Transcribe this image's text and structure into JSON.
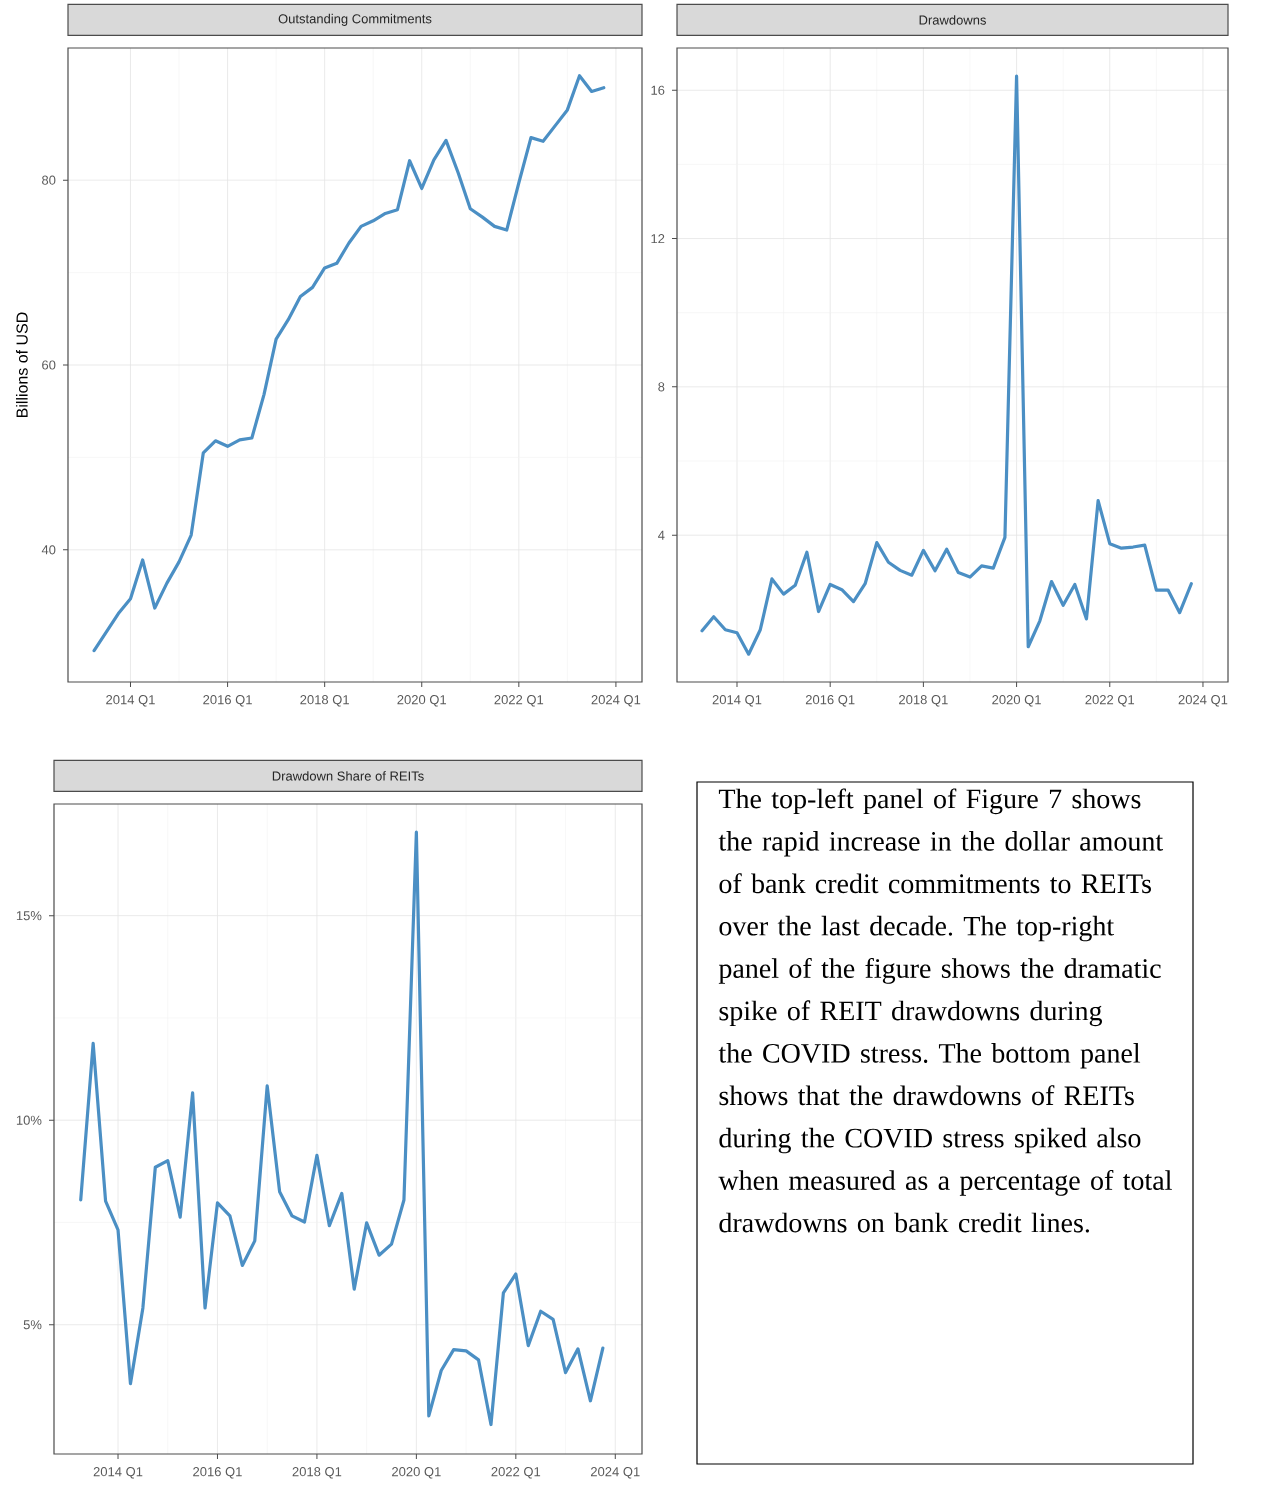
{
  "chart_data": [
    {
      "type": "line",
      "title": "Outstanding Commitments",
      "ylabel": "Billions of USD",
      "color": "#4b8fc4",
      "grid": true,
      "categories": [
        null,
        null,
        null,
        "2014 Q1",
        null,
        null,
        null,
        null,
        null,
        null,
        null,
        "2016 Q1",
        null,
        null,
        null,
        null,
        null,
        null,
        null,
        "2018 Q1",
        null,
        null,
        null,
        null,
        null,
        null,
        null,
        "2020 Q1",
        null,
        null,
        null,
        null,
        null,
        null,
        null,
        "2022 Q1",
        null,
        null,
        null,
        null,
        null,
        null,
        null,
        "2024 Q1"
      ],
      "values": [
        29.1,
        31.1,
        33.1,
        34.7,
        38.9,
        33.7,
        36.4,
        38.7,
        41.6,
        50.5,
        51.8,
        51.2,
        51.9,
        52.1,
        56.8,
        62.8,
        64.9,
        67.4,
        68.4,
        70.5,
        71.0,
        73.2,
        75.0,
        75.6,
        76.4,
        76.8,
        82.1,
        79.1,
        82.2,
        84.3,
        80.8,
        76.9,
        76.0,
        75.0,
        74.6,
        79.7,
        84.6,
        84.2,
        85.9,
        87.6,
        91.3,
        89.6,
        90.0,
        null
      ],
      "ylim": [
        25.7,
        94.3
      ],
      "yticks": [
        40,
        60,
        80
      ]
    },
    {
      "type": "line",
      "title": "Drawdowns",
      "color": "#4b8fc4",
      "grid": true,
      "categories": [
        null,
        null,
        null,
        "2014 Q1",
        null,
        null,
        null,
        null,
        null,
        null,
        null,
        "2016 Q1",
        null,
        null,
        null,
        null,
        null,
        null,
        null,
        "2018 Q1",
        null,
        null,
        null,
        null,
        null,
        null,
        null,
        "2020 Q1",
        null,
        null,
        null,
        null,
        null,
        null,
        null,
        "2022 Q1",
        null,
        null,
        null,
        null,
        null,
        null,
        null,
        "2024 Q1"
      ],
      "values": [
        1.42,
        1.8,
        1.45,
        1.37,
        0.79,
        1.45,
        2.82,
        2.41,
        2.65,
        3.54,
        1.94,
        2.67,
        2.53,
        2.21,
        2.69,
        3.8,
        3.27,
        3.05,
        2.92,
        3.59,
        3.04,
        3.62,
        2.99,
        2.87,
        3.17,
        3.11,
        3.94,
        16.38,
        0.99,
        1.69,
        2.75,
        2.11,
        2.67,
        1.74,
        4.93,
        3.77,
        3.65,
        3.68,
        3.73,
        2.52,
        2.52,
        1.91,
        2.69,
        null
      ],
      "ylim": [
        0.04,
        17.14
      ],
      "yticks": [
        4,
        8,
        12,
        16
      ]
    },
    {
      "type": "line",
      "title": "Drawdown Share of REITs",
      "color": "#4b8fc4",
      "grid": true,
      "categories": [
        null,
        null,
        null,
        "2014 Q1",
        null,
        null,
        null,
        null,
        null,
        null,
        null,
        "2016 Q1",
        null,
        null,
        null,
        null,
        null,
        null,
        null,
        "2018 Q1",
        null,
        null,
        null,
        null,
        null,
        null,
        null,
        "2020 Q1",
        null,
        null,
        null,
        null,
        null,
        null,
        null,
        "2022 Q1",
        null,
        null,
        null,
        null,
        null,
        null,
        null,
        "2024 Q1"
      ],
      "values": [
        8.05,
        11.88,
        8.02,
        7.32,
        3.56,
        5.41,
        8.85,
        9.01,
        7.63,
        10.67,
        5.41,
        7.98,
        7.66,
        6.45,
        7.05,
        10.84,
        8.25,
        7.66,
        7.51,
        9.14,
        7.42,
        8.21,
        5.87,
        7.49,
        6.7,
        6.97,
        8.05,
        17.04,
        2.77,
        3.88,
        4.39,
        4.36,
        4.14,
        2.56,
        5.78,
        6.24,
        4.49,
        5.33,
        5.13,
        3.83,
        4.41,
        3.14,
        4.43,
        null
      ],
      "ylim": [
        1.84,
        17.73
      ],
      "yticks": [
        {
          "value": 5,
          "label": "5%"
        },
        {
          "value": 10,
          "label": "10%"
        },
        {
          "value": 15,
          "label": "15%"
        }
      ]
    },
    {
      "type": "other",
      "annotations": [
        "The top-left panel of Figure 7 shows the rapid increase in the dollar amount of bank credit commitments to REITs over the last decade. The top-right panel of the figure shows the dramatic spike of REIT drawdowns during the COVID stress. The bottom panel shows that the drawdowns of REITs during the COVID stress spiked also when measured as a percentage of total drawdowns on bank credit lines."
      ]
    }
  ]
}
